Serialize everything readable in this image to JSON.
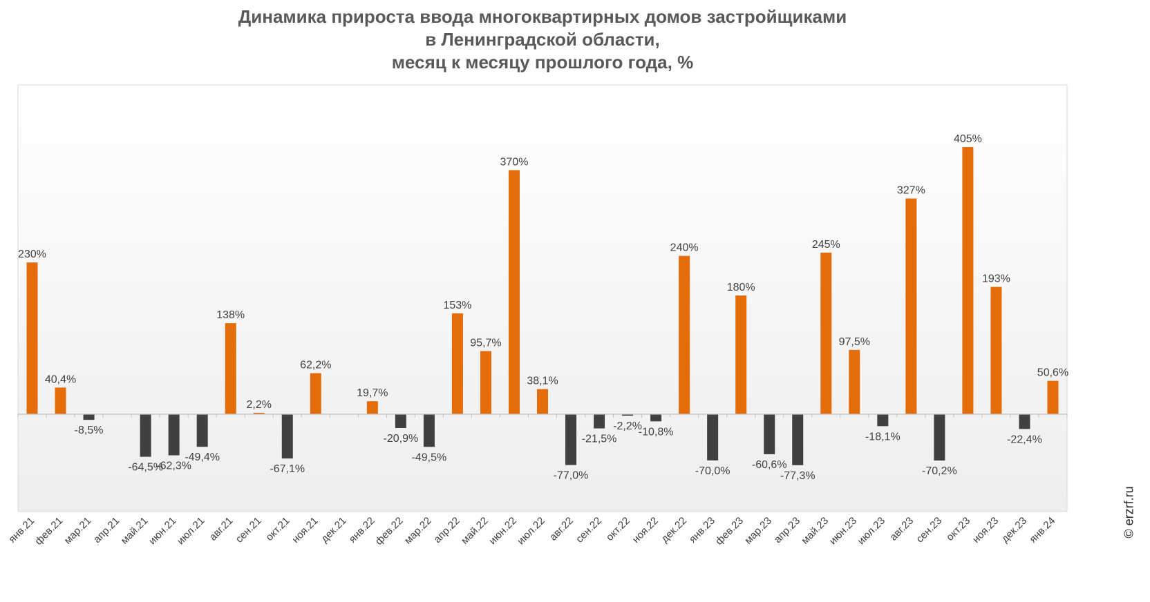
{
  "title_lines": [
    "Динамика прироста ввода многоквартирных домов застройщиками",
    "в Ленинградской области,",
    "месяц к месяцу прошлого года, %"
  ],
  "credit": "© erzrf.ru",
  "colors": {
    "positive": "#e46c0a",
    "negative": "#404040",
    "label": "#404040"
  },
  "chart_data": {
    "type": "bar",
    "title": "Динамика прироста ввода многоквартирных домов застройщиками в Ленинградской области, месяц к месяцу прошлого года, %",
    "xlabel": "",
    "ylabel": "",
    "ylim": [
      -150,
      500
    ],
    "grid": false,
    "legend": "none",
    "categories": [
      "янв.21",
      "фев.21",
      "мар.21",
      "апр.21",
      "май.21",
      "июн.21",
      "июл.21",
      "авг.21",
      "сен.21",
      "окт.21",
      "ноя.21",
      "дек.21",
      "янв.22",
      "фев.22",
      "мар.22",
      "апр.22",
      "май.22",
      "июн.22",
      "июл.22",
      "авг.22",
      "сен.22",
      "окт.22",
      "ноя.22",
      "дек.22",
      "янв.23",
      "фев.23",
      "мар.23",
      "апр.23",
      "май.23",
      "июн.23",
      "июл.23",
      "авг.23",
      "сен.23",
      "окт.23",
      "ноя.23",
      "дек.23",
      "янв.24"
    ],
    "values": [
      230,
      40.4,
      -8.5,
      null,
      -64.5,
      -62.3,
      -49.4,
      138,
      2.2,
      -67.1,
      62.2,
      null,
      19.7,
      -20.9,
      -49.5,
      153,
      95.7,
      370,
      38.1,
      -77.0,
      -21.5,
      -2.2,
      -10.8,
      240,
      -70.0,
      180,
      -60.6,
      -77.3,
      245,
      97.5,
      -18.1,
      327,
      -70.2,
      405,
      193,
      -22.4,
      50.6
    ],
    "data_labels": [
      "230%",
      "40,4%",
      "-8,5%",
      "",
      "-64,5%",
      "-62,3%",
      "-49,4%",
      "138%",
      "2,2%",
      "-67,1%",
      "62,2%",
      "",
      "19,7%",
      "-20,9%",
      "-49,5%",
      "153%",
      "95,7%",
      "370%",
      "38,1%",
      "-77,0%",
      "-21,5%",
      "-2,2%",
      "-10,8%",
      "240%",
      "-70,0%",
      "180%",
      "-60,6%",
      "-77,3%",
      "245%",
      "97,5%",
      "-18,1%",
      "327%",
      "-70,2%",
      "405%",
      "193%",
      "-22,4%",
      "50,6%"
    ]
  }
}
